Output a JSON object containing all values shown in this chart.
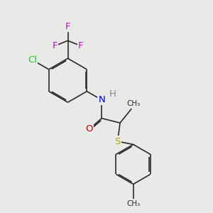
{
  "background_color": "#e8eae8",
  "bond_color": "#2a2a2a",
  "bond_width": 1.2,
  "dbo": 0.055,
  "atoms": {
    "Cl": {
      "color": "#22cc22",
      "fontsize": 9.5
    },
    "F": {
      "color": "#dd00dd",
      "fontsize": 9.5
    },
    "N": {
      "color": "#0000dd",
      "fontsize": 9.5
    },
    "O": {
      "color": "#cc0000",
      "fontsize": 9.5
    },
    "S": {
      "color": "#aaaa00",
      "fontsize": 9.5
    },
    "H": {
      "color": "#888888",
      "fontsize": 9.5
    },
    "CH3": {
      "color": "#2a2a2a",
      "fontsize": 7.5
    }
  },
  "figsize": [
    3.0,
    3.0
  ],
  "dpi": 100,
  "xlim": [
    0,
    10
  ],
  "ylim": [
    0,
    10
  ]
}
